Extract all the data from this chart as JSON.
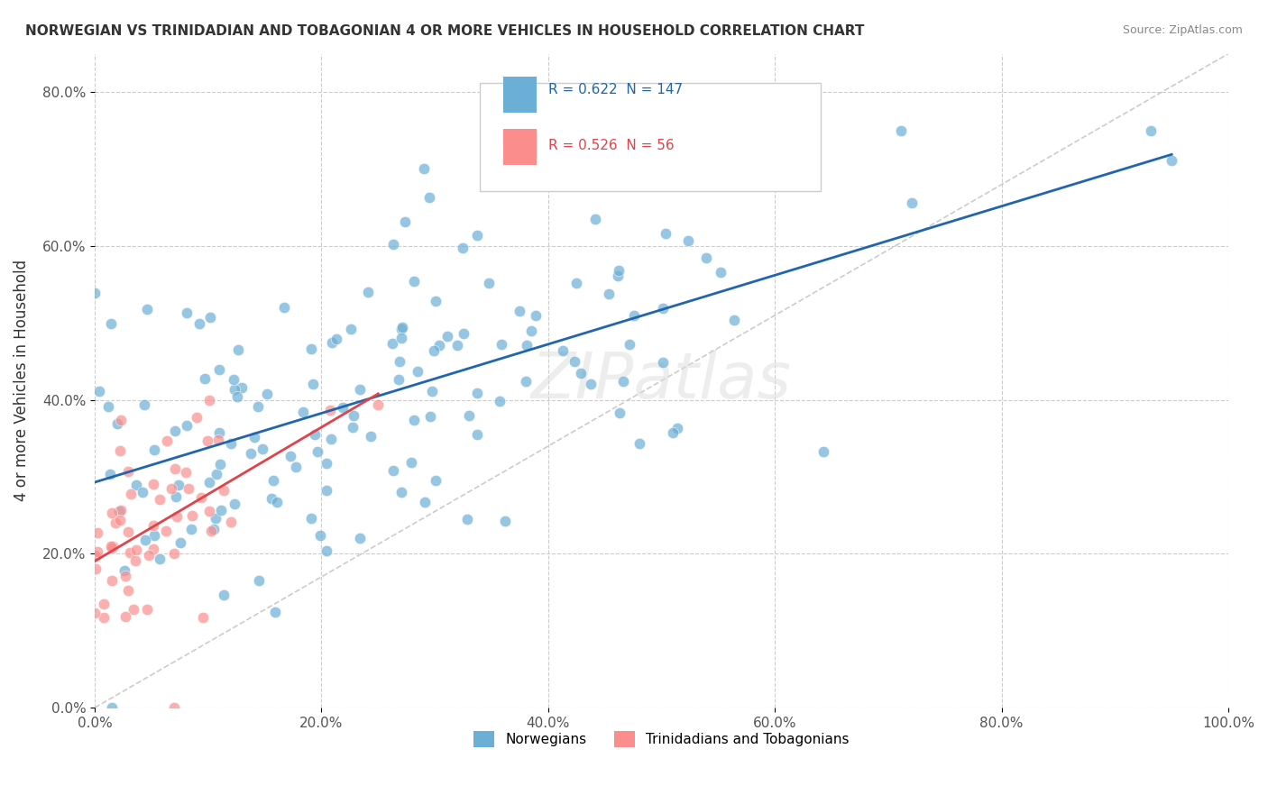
{
  "title": "NORWEGIAN VS TRINIDADIAN AND TOBAGONIAN 4 OR MORE VEHICLES IN HOUSEHOLD CORRELATION CHART",
  "source": "Source: ZipAtlas.com",
  "ylabel": "4 or more Vehicles in Household",
  "xlim": [
    0.0,
    1.0
  ],
  "ylim": [
    0.0,
    0.85
  ],
  "xticks": [
    0.0,
    0.2,
    0.4,
    0.6,
    0.8,
    1.0
  ],
  "yticks": [
    0.0,
    0.2,
    0.4,
    0.6,
    0.8
  ],
  "xticklabels": [
    "0.0%",
    "20.0%",
    "40.0%",
    "60.0%",
    "80.0%",
    "100.0%"
  ],
  "yticklabels": [
    "0.0%",
    "20.0%",
    "40.0%",
    "60.0%",
    "80.0%"
  ],
  "norwegian_color": "#6baed6",
  "trinidadian_color": "#fc8d8d",
  "norwegian_R": 0.622,
  "norwegian_N": 147,
  "trinidadian_R": 0.526,
  "trinidadian_N": 56,
  "norwegian_line_color": "#2166ac",
  "trinidadian_line_color": "#e0434a",
  "diagonal_color": "#cccccc",
  "grid_color": "#cccccc",
  "background_color": "#ffffff",
  "watermark": "ZIPatlas",
  "legend_labels": [
    "Norwegians",
    "Trinidadians and Tobagonians"
  ],
  "norwegian_seed": 42,
  "trinidadian_seed": 7
}
